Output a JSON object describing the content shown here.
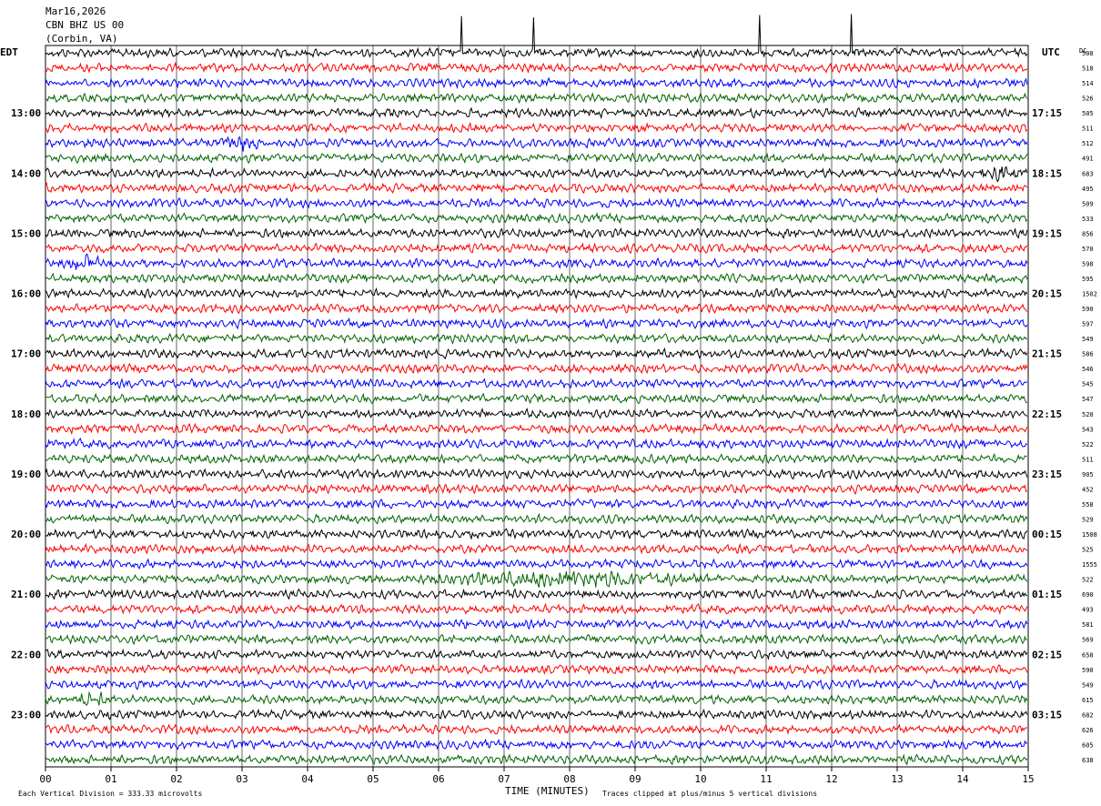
{
  "header": {
    "date": "Mar16,2026",
    "station": "CBN BHZ US 00",
    "location": "(Corbin, VA)"
  },
  "left_timezone": "EDT",
  "right_timezone": "UTC",
  "dc_label": "DC",
  "footer": {
    "scale_text": "Each Vertical Division =  333.33 microvolts",
    "xlabel": "TIME (MINUTES)",
    "clip_text": "Traces clipped at plus/minus 5 vertical divisions"
  },
  "colors": {
    "trace_cycle": [
      "#000000",
      "#ff0000",
      "#0000ff",
      "#006400"
    ],
    "grid": "#000000",
    "background": "#ffffff"
  },
  "chart_data": {
    "type": "seismogram helicorder",
    "x_range_minutes": [
      0,
      15
    ],
    "x_ticks": [
      "00",
      "01",
      "02",
      "03",
      "04",
      "05",
      "06",
      "07",
      "08",
      "09",
      "10",
      "11",
      "12",
      "13",
      "14",
      "15"
    ],
    "traces_per_hour": 4,
    "trace_count": 48,
    "left_hour_labels": [
      "13:00",
      "14:00",
      "15:00",
      "16:00",
      "17:00",
      "18:00",
      "19:00",
      "20:00",
      "21:00",
      "22:00",
      "23:00"
    ],
    "right_hour_labels": [
      "17:15",
      "18:15",
      "19:15",
      "20:15",
      "21:15",
      "22:15",
      "23:15",
      "00:15",
      "01:15",
      "02:15",
      "03:15"
    ],
    "first_labeled_trace_index": 4,
    "dc_offsets": [
      "508",
      "518",
      "514",
      "526",
      "505",
      "511",
      "512",
      "491",
      "683",
      "495",
      "509",
      "533",
      "856",
      "570",
      "598",
      "595",
      "1502",
      "590",
      "597",
      "549",
      "586",
      "546",
      "545",
      "547",
      "520",
      "543",
      "522",
      "511",
      "905",
      "452",
      "558",
      "529",
      "1508",
      "525",
      "1555",
      "522",
      "690",
      "493",
      "581",
      "569",
      "658",
      "590",
      "549",
      "615",
      "682",
      "626",
      "605",
      "638"
    ],
    "notable_events": [
      {
        "trace": 0,
        "minute": 6.35,
        "type": "spike"
      },
      {
        "trace": 0,
        "minute": 7.45,
        "type": "spike"
      },
      {
        "trace": 0,
        "minute": 10.9,
        "type": "spike"
      },
      {
        "trace": 0,
        "minute": 12.3,
        "type": "spike"
      },
      {
        "trace": 6,
        "minute": 3.0,
        "type": "burst"
      },
      {
        "trace": 8,
        "minute": 14.6,
        "type": "burst"
      },
      {
        "trace": 14,
        "minute": 0.6,
        "type": "burst"
      },
      {
        "trace": 35,
        "minute": 8.0,
        "type": "large burst"
      },
      {
        "trace": 43,
        "minute": 0.7,
        "type": "burst"
      }
    ]
  }
}
